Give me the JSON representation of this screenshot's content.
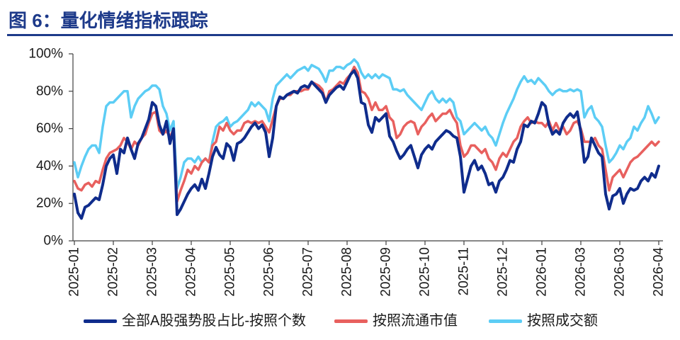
{
  "colors": {
    "title": "#1d3a8a",
    "rule": "#1d3a8a"
  },
  "chart_data": {
    "type": "line",
    "title": "图 6：量化情绪指标跟踪",
    "ylim": [
      0,
      100
    ],
    "y_ticks": [
      0,
      20,
      40,
      60,
      80,
      100
    ],
    "y_tick_labels": [
      "0%",
      "20%",
      "40%",
      "60%",
      "80%",
      "100%"
    ],
    "x_ticks": [
      "2025-01",
      "2025-02",
      "2025-03",
      "2025-04",
      "2025-05",
      "2025-06",
      "2025-07",
      "2025-08",
      "2025-09",
      "2025-10",
      "2025-11",
      "2025-12",
      "2026-01",
      "2026-03",
      "2026-03",
      "2026-04"
    ],
    "grid": false,
    "legend_position": "bottom",
    "series": [
      {
        "name": "全部A股强势股占比-按照个数",
        "color": "#0f2c8c",
        "values": [
          25,
          15,
          12,
          18,
          19,
          21,
          23,
          22,
          30,
          40,
          44,
          46,
          36,
          49,
          47,
          55,
          49,
          44,
          52,
          55,
          60,
          65,
          74,
          72,
          62,
          57,
          64,
          52,
          60,
          14,
          17,
          21,
          25,
          28,
          30,
          27,
          33,
          28,
          36,
          45,
          50,
          46,
          44,
          52,
          50,
          43,
          52,
          53,
          55,
          58,
          61,
          63,
          60,
          62,
          58,
          45,
          55,
          72,
          77,
          76,
          78,
          79,
          80,
          79,
          82,
          83,
          82,
          85,
          83,
          81,
          79,
          74,
          78,
          80,
          82,
          83,
          81,
          85,
          89,
          91,
          87,
          74,
          73,
          62,
          58,
          66,
          64,
          66,
          68,
          56,
          53,
          48,
          44,
          46,
          49,
          51,
          45,
          39,
          46,
          49,
          51,
          49,
          53,
          55,
          57,
          59,
          58,
          56,
          55,
          45,
          26,
          33,
          40,
          43,
          38,
          40,
          36,
          30,
          31,
          26,
          32,
          34,
          38,
          43,
          42,
          49,
          53,
          62,
          61,
          64,
          63,
          68,
          74,
          72,
          62,
          57,
          59,
          57,
          63,
          66,
          68,
          66,
          69,
          58,
          42,
          45,
          55,
          51,
          47,
          45,
          25,
          17,
          24,
          25,
          28,
          20,
          25,
          28,
          27,
          28,
          32,
          34,
          32,
          36,
          34,
          40
        ]
      },
      {
        "name": "按照流通市值",
        "color": "#e8605e",
        "values": [
          32,
          28,
          27,
          30,
          31,
          29,
          32,
          31,
          38,
          44,
          47,
          48,
          49,
          51,
          55,
          53,
          49,
          53,
          51,
          55,
          57,
          63,
          68,
          69,
          59,
          57,
          59,
          55,
          60,
          21,
          27,
          32,
          38,
          36,
          40,
          38,
          42,
          44,
          42,
          51,
          53,
          61,
          59,
          63,
          59,
          57,
          59,
          59,
          63,
          64,
          63,
          64,
          63,
          64,
          61,
          58,
          65,
          72,
          76,
          76,
          78,
          78,
          80,
          80,
          80,
          81,
          81,
          85,
          84,
          83,
          81,
          74,
          80,
          81,
          83,
          85,
          84,
          87,
          89,
          93,
          90,
          80,
          79,
          76,
          70,
          74,
          70,
          70,
          72,
          66,
          64,
          55,
          57,
          61,
          63,
          64,
          63,
          57,
          61,
          63,
          66,
          68,
          64,
          66,
          68,
          68,
          70,
          66,
          63,
          51,
          45,
          47,
          51,
          51,
          49,
          47,
          49,
          44,
          42,
          38,
          44,
          47,
          45,
          49,
          53,
          55,
          61,
          64,
          66,
          63,
          64,
          63,
          63,
          61,
          64,
          59,
          63,
          59,
          61,
          57,
          59,
          63,
          64,
          60,
          53,
          53,
          53,
          55,
          51,
          49,
          38,
          27,
          34,
          36,
          38,
          34,
          38,
          42,
          44,
          45,
          47,
          49,
          51,
          53,
          51,
          53
        ]
      },
      {
        "name": "按照成交额",
        "color": "#5ccdf5",
        "values": [
          42,
          34,
          40,
          45,
          49,
          51,
          51,
          47,
          61,
          72,
          74,
          74,
          76,
          78,
          80,
          80,
          66,
          72,
          76,
          78,
          80,
          81,
          83,
          83,
          81,
          72,
          68,
          59,
          64,
          28,
          34,
          42,
          44,
          44,
          42,
          45,
          42,
          44,
          42,
          53,
          61,
          63,
          64,
          66,
          61,
          63,
          64,
          66,
          68,
          70,
          74,
          72,
          74,
          72,
          70,
          64,
          76,
          83,
          85,
          87,
          89,
          87,
          89,
          91,
          92,
          93,
          91,
          94,
          93,
          92,
          89,
          85,
          91,
          91,
          93,
          93,
          92,
          94,
          95,
          97,
          95,
          90,
          87,
          89,
          87,
          89,
          87,
          89,
          88,
          87,
          81,
          81,
          80,
          81,
          78,
          76,
          74,
          72,
          70,
          74,
          78,
          80,
          76,
          74,
          76,
          74,
          76,
          74,
          66,
          64,
          57,
          59,
          61,
          63,
          61,
          59,
          61,
          57,
          55,
          51,
          57,
          63,
          68,
          72,
          76,
          81,
          85,
          88,
          85,
          86,
          84,
          87,
          85,
          83,
          80,
          78,
          80,
          81,
          80,
          80,
          81,
          80,
          81,
          80,
          66,
          70,
          72,
          66,
          64,
          61,
          51,
          42,
          44,
          47,
          51,
          49,
          53,
          55,
          61,
          59,
          63,
          66,
          72,
          68,
          63,
          66
        ]
      }
    ]
  }
}
